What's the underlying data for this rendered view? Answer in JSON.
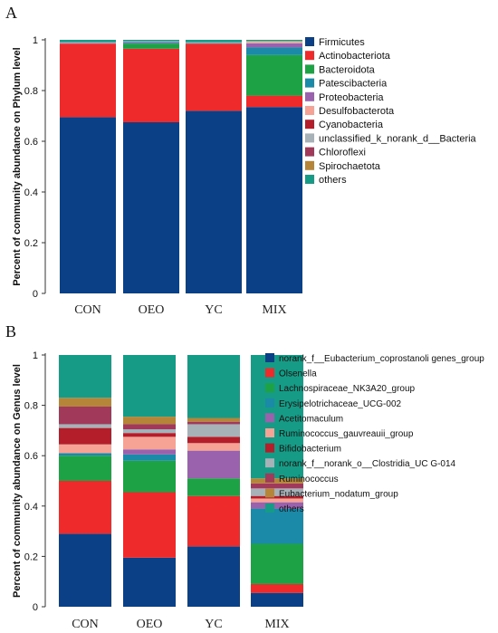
{
  "chart_data": [
    {
      "type": "bar",
      "stacked": true,
      "panel_label": "A",
      "ylabel": "Percent of community abundance on Phylum level",
      "ylim": [
        0,
        1
      ],
      "yticks": [
        "0",
        "0.2",
        "0.4",
        "0.6",
        "0.8",
        "1"
      ],
      "categories": [
        "CON",
        "OEO",
        "YC",
        "MIX"
      ],
      "series": [
        {
          "name": "Firmicutes",
          "color": "#0b3f86",
          "values": [
            0.695,
            0.675,
            0.72,
            0.735
          ]
        },
        {
          "name": "Actinobacteriota",
          "color": "#ee2a2a",
          "values": [
            0.29,
            0.29,
            0.265,
            0.045
          ]
        },
        {
          "name": "Bacteroidota",
          "color": "#1ea246",
          "values": [
            0.0,
            0.02,
            0.0,
            0.16
          ]
        },
        {
          "name": "Patescibacteria",
          "color": "#1a8aa8",
          "values": [
            0.0,
            0.004,
            0.002,
            0.03
          ]
        },
        {
          "name": "Proteobacteria",
          "color": "#9a61ad",
          "values": [
            0.002,
            0.003,
            0.0,
            0.016
          ]
        },
        {
          "name": "Desulfobacterota",
          "color": "#f6a396",
          "values": [
            0.0,
            0.0,
            0.0,
            0.004
          ]
        },
        {
          "name": "Cyanobacteria",
          "color": "#b41e2a",
          "values": [
            0.0,
            0.0,
            0.0,
            0.0
          ]
        },
        {
          "name": "unclassified_k_norank_d__Bacteria",
          "color": "#a7b1b8",
          "values": [
            0.004,
            0.003,
            0.004,
            0.004
          ]
        },
        {
          "name": "Chloroflexi",
          "color": "#a13a5a",
          "values": [
            0.0,
            0.0,
            0.0,
            0.0
          ]
        },
        {
          "name": "Spirochaetota",
          "color": "#b5863a",
          "values": [
            0.0,
            0.0,
            0.0,
            0.002
          ]
        },
        {
          "name": "others",
          "color": "#169b86",
          "values": [
            0.009,
            0.005,
            0.009,
            0.004
          ]
        }
      ]
    },
    {
      "type": "bar",
      "stacked": true,
      "panel_label": "B",
      "ylabel": "Percent of community abundance on Genus level",
      "ylim": [
        0,
        1
      ],
      "yticks": [
        "0",
        "0.2",
        "0.4",
        "0.6",
        "0.8",
        "1"
      ],
      "categories": [
        "CON",
        "OEO",
        "YC",
        "MIX"
      ],
      "series": [
        {
          "name": "norank_f__Eubacterium_coprostanoli genes_group",
          "color": "#0b3f86",
          "values": [
            0.29,
            0.195,
            0.24,
            0.055
          ]
        },
        {
          "name": "Olsenella",
          "color": "#ee2a2a",
          "values": [
            0.21,
            0.26,
            0.2,
            0.035
          ]
        },
        {
          "name": "Lachnospiraceae_NK3A20_group",
          "color": "#1ea246",
          "values": [
            0.1,
            0.125,
            0.07,
            0.16
          ]
        },
        {
          "name": "Erysipelotrichaceae_UCG-002",
          "color": "#1a8aa8",
          "values": [
            0.01,
            0.025,
            0.0,
            0.14
          ]
        },
        {
          "name": "Acetitomaculum",
          "color": "#9a61ad",
          "values": [
            0.0,
            0.02,
            0.11,
            0.025
          ]
        },
        {
          "name": "Ruminococcus_gauvreauii_group",
          "color": "#f6a396",
          "values": [
            0.035,
            0.05,
            0.03,
            0.015
          ]
        },
        {
          "name": "Bifidobacterium",
          "color": "#b41e2a",
          "values": [
            0.065,
            0.015,
            0.025,
            0.01
          ]
        },
        {
          "name": "norank_f__norank_o__Clostridia_UC G-014",
          "color": "#a7b1b8",
          "values": [
            0.015,
            0.015,
            0.05,
            0.03
          ]
        },
        {
          "name": "Ruminococcus",
          "color": "#a13a5a",
          "values": [
            0.07,
            0.02,
            0.01,
            0.02
          ]
        },
        {
          "name": "Eubacterium_nodatum_group",
          "color": "#b5863a",
          "values": [
            0.035,
            0.03,
            0.015,
            0.02
          ]
        },
        {
          "name": "others",
          "color": "#169b86",
          "values": [
            0.17,
            0.245,
            0.25,
            0.49
          ]
        }
      ]
    }
  ]
}
